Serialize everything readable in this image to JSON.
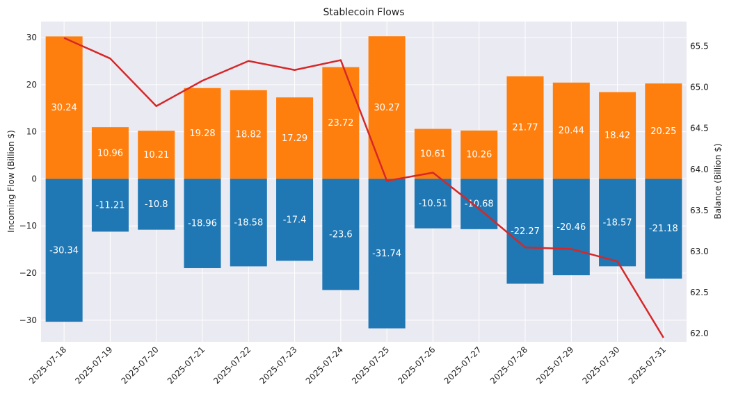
{
  "chart_data": {
    "type": "bar",
    "title": "Stablecoin Flows",
    "xlabel": "",
    "ylabel": "Incoming Flow (Billion $)",
    "y2label": "Balance (Billion $)",
    "categories": [
      "2025-07-18",
      "2025-07-19",
      "2025-07-20",
      "2025-07-21",
      "2025-07-22",
      "2025-07-23",
      "2025-07-24",
      "2025-07-25",
      "2025-07-26",
      "2025-07-27",
      "2025-07-28",
      "2025-07-29",
      "2025-07-30",
      "2025-07-31"
    ],
    "series": [
      {
        "kind": "bar",
        "axis": "left",
        "color": "#ff7f0e",
        "values": [
          30.24,
          10.96,
          10.21,
          19.28,
          18.82,
          17.29,
          23.72,
          30.27,
          10.61,
          10.26,
          21.77,
          20.44,
          18.42,
          20.25
        ]
      },
      {
        "kind": "bar",
        "axis": "left",
        "color": "#1f77b4",
        "values": [
          -30.34,
          -11.21,
          -10.8,
          -18.96,
          -18.58,
          -17.4,
          -23.6,
          -31.74,
          -10.51,
          -10.68,
          -22.27,
          -20.46,
          -18.57,
          -21.18
        ]
      },
      {
        "kind": "line",
        "axis": "right",
        "color": "#d62728",
        "values": [
          65.6,
          65.35,
          64.77,
          65.08,
          65.32,
          65.21,
          65.33,
          63.86,
          63.96,
          63.52,
          63.05,
          63.03,
          62.88,
          61.95
        ]
      }
    ],
    "data_labels": {
      "incoming": [
        "30.24",
        "10.96",
        "10.21",
        "19.28",
        "18.82",
        "17.29",
        "23.72",
        "30.27",
        "10.61",
        "10.26",
        "21.77",
        "20.44",
        "18.42",
        "20.25"
      ],
      "outgoing": [
        "-30.34",
        "-11.21",
        "-10.8",
        "-18.96",
        "-18.58",
        "-17.4",
        "-23.6",
        "-31.74",
        "-10.51",
        "-10.68",
        "-22.27",
        "-20.46",
        "-18.57",
        "-21.18"
      ]
    },
    "ylim": [
      -34.6,
      33.4
    ],
    "y2lim": [
      61.9,
      65.8
    ],
    "yticks": [
      -30,
      -20,
      -10,
      0,
      10,
      20,
      30
    ],
    "ytick_labels": [
      "−30",
      "−20",
      "−10",
      "0",
      "10",
      "20",
      "30"
    ],
    "y2ticks": [
      62.0,
      62.5,
      63.0,
      63.5,
      64.0,
      64.5,
      65.0,
      65.5
    ],
    "y2tick_labels": [
      "62.0",
      "62.5",
      "63.0",
      "63.5",
      "64.0",
      "64.5",
      "65.0",
      "65.5"
    ],
    "grid": true,
    "background": "#eaeaf2"
  }
}
